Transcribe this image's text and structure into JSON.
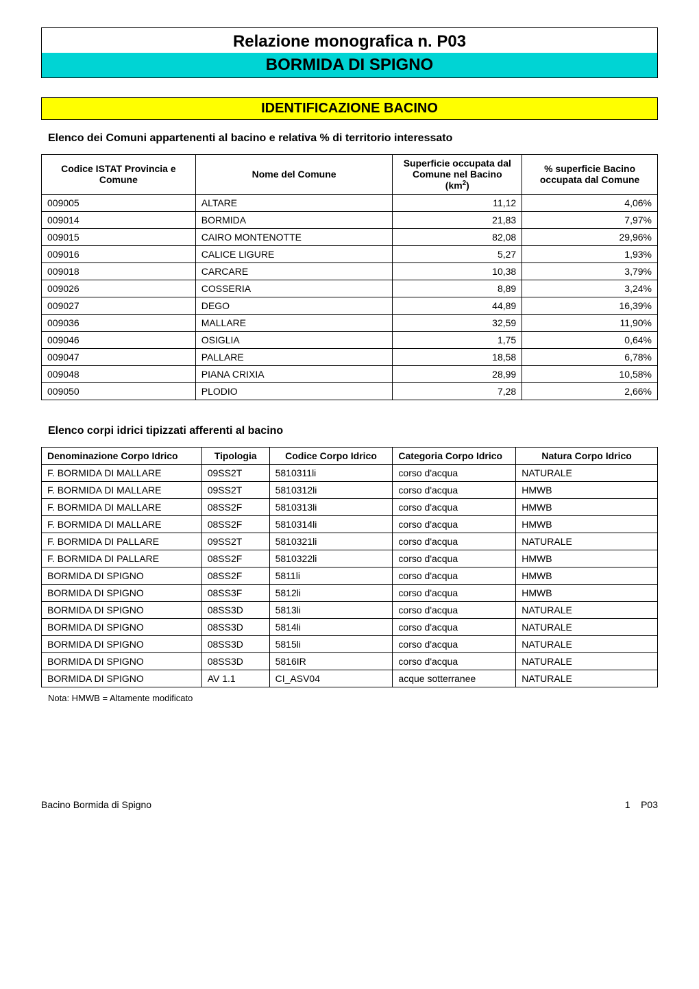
{
  "header": {
    "title_line1": "Relazione monografica n. P03",
    "title_line2": "BORMIDA DI SPIGNO",
    "title_bar_bg": "#00d4d4",
    "title_border": "#000000"
  },
  "identificazione": {
    "bar_label": "IDENTIFICAZIONE BACINO",
    "bar_bg": "#ffff00"
  },
  "comuni_section": {
    "heading": "Elenco dei Comuni appartenenti al bacino e relativa % di territorio interessato",
    "columns": [
      "Codice ISTAT Provincia e Comune",
      "Nome del Comune",
      "Superficie occupata dal Comune nel Bacino (km²)",
      "Superficie occupata dal Comune nel Bacino",
      "% superficie Bacino occupata dal Comune"
    ],
    "col_widths": [
      "25%",
      "32%",
      "21%",
      "22%"
    ],
    "rows": [
      {
        "codice": "009005",
        "nome": "ALTARE",
        "sup": "11,12",
        "pct": "4,06%"
      },
      {
        "codice": "009014",
        "nome": "BORMIDA",
        "sup": "21,83",
        "pct": "7,97%"
      },
      {
        "codice": "009015",
        "nome": "CAIRO MONTENOTTE",
        "sup": "82,08",
        "pct": "29,96%"
      },
      {
        "codice": "009016",
        "nome": "CALICE LIGURE",
        "sup": "5,27",
        "pct": "1,93%"
      },
      {
        "codice": "009018",
        "nome": "CARCARE",
        "sup": "10,38",
        "pct": "3,79%"
      },
      {
        "codice": "009026",
        "nome": "COSSERIA",
        "sup": "8,89",
        "pct": "3,24%"
      },
      {
        "codice": "009027",
        "nome": "DEGO",
        "sup": "44,89",
        "pct": "16,39%"
      },
      {
        "codice": "009036",
        "nome": "MALLARE",
        "sup": "32,59",
        "pct": "11,90%"
      },
      {
        "codice": "009046",
        "nome": "OSIGLIA",
        "sup": "1,75",
        "pct": "0,64%"
      },
      {
        "codice": "009047",
        "nome": "PALLARE",
        "sup": "18,58",
        "pct": "6,78%"
      },
      {
        "codice": "009048",
        "nome": "PIANA CRIXIA",
        "sup": "28,99",
        "pct": "10,58%"
      },
      {
        "codice": "009050",
        "nome": "PLODIO",
        "sup": "7,28",
        "pct": "2,66%"
      }
    ]
  },
  "corpi_section": {
    "heading": "Elenco corpi idrici tipizzati afferenti al bacino",
    "columns": [
      "Denominazione Corpo Idrico",
      "Tipologia",
      "Codice Corpo Idrico",
      "Categoria Corpo Idrico",
      "Natura Corpo Idrico"
    ],
    "col_widths": [
      "26%",
      "11%",
      "20%",
      "20%",
      "23%"
    ],
    "rows": [
      {
        "den": "F. BORMIDA DI MALLARE",
        "tip": "09SS2T",
        "cod": "5810311li",
        "cat": "corso d'acqua",
        "nat": "NATURALE"
      },
      {
        "den": "F. BORMIDA DI MALLARE",
        "tip": "09SS2T",
        "cod": "5810312li",
        "cat": "corso d'acqua",
        "nat": "HMWB"
      },
      {
        "den": "F. BORMIDA DI MALLARE",
        "tip": "08SS2F",
        "cod": "5810313li",
        "cat": "corso d'acqua",
        "nat": "HMWB"
      },
      {
        "den": "F. BORMIDA DI MALLARE",
        "tip": "08SS2F",
        "cod": "5810314li",
        "cat": "corso d'acqua",
        "nat": "HMWB"
      },
      {
        "den": "F. BORMIDA DI PALLARE",
        "tip": "09SS2T",
        "cod": "5810321li",
        "cat": "corso d'acqua",
        "nat": "NATURALE"
      },
      {
        "den": "F. BORMIDA DI PALLARE",
        "tip": "08SS2F",
        "cod": "5810322li",
        "cat": "corso d'acqua",
        "nat": "HMWB"
      },
      {
        "den": "BORMIDA DI SPIGNO",
        "tip": "08SS2F",
        "cod": "5811li",
        "cat": "corso d'acqua",
        "nat": "HMWB"
      },
      {
        "den": "BORMIDA DI SPIGNO",
        "tip": "08SS3F",
        "cod": "5812li",
        "cat": "corso d'acqua",
        "nat": "HMWB"
      },
      {
        "den": "BORMIDA DI SPIGNO",
        "tip": "08SS3D",
        "cod": "5813li",
        "cat": "corso d'acqua",
        "nat": "NATURALE"
      },
      {
        "den": "BORMIDA DI SPIGNO",
        "tip": "08SS3D",
        "cod": "5814li",
        "cat": "corso d'acqua",
        "nat": "NATURALE"
      },
      {
        "den": "BORMIDA DI SPIGNO",
        "tip": "08SS3D",
        "cod": "5815li",
        "cat": "corso d'acqua",
        "nat": "NATURALE"
      },
      {
        "den": "BORMIDA DI SPIGNO",
        "tip": "08SS3D",
        "cod": "5816IR",
        "cat": "corso d'acqua",
        "nat": "NATURALE"
      },
      {
        "den": "BORMIDA DI SPIGNO",
        "tip": "AV 1.1",
        "cod": "CI_ASV04",
        "cat": "acque sotterranee",
        "nat": "NATURALE"
      }
    ],
    "footnote": "Nota: HMWB = Altamente modificato"
  },
  "footer": {
    "left": "Bacino Bormida di Spigno",
    "right_num": "1",
    "right_code": "P03"
  },
  "style": {
    "body_bg": "#ffffff",
    "text_color": "#000000",
    "border_color": "#000000",
    "font_family": "Arial",
    "th_fontsize": 14,
    "td_fontsize": 14,
    "heading_fontsize": 16,
    "title_fontsize": 24,
    "bar_fontsize": 20
  }
}
